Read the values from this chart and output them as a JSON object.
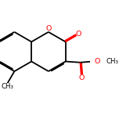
{
  "bg_color": "#ffffff",
  "bond_color": "#000000",
  "oxygen_color": "#ff0000",
  "line_width": 1.3,
  "figsize": [
    1.52,
    1.52
  ],
  "dpi": 100,
  "xlim": [
    -1.8,
    2.8
  ],
  "ylim": [
    -2.2,
    1.8
  ]
}
